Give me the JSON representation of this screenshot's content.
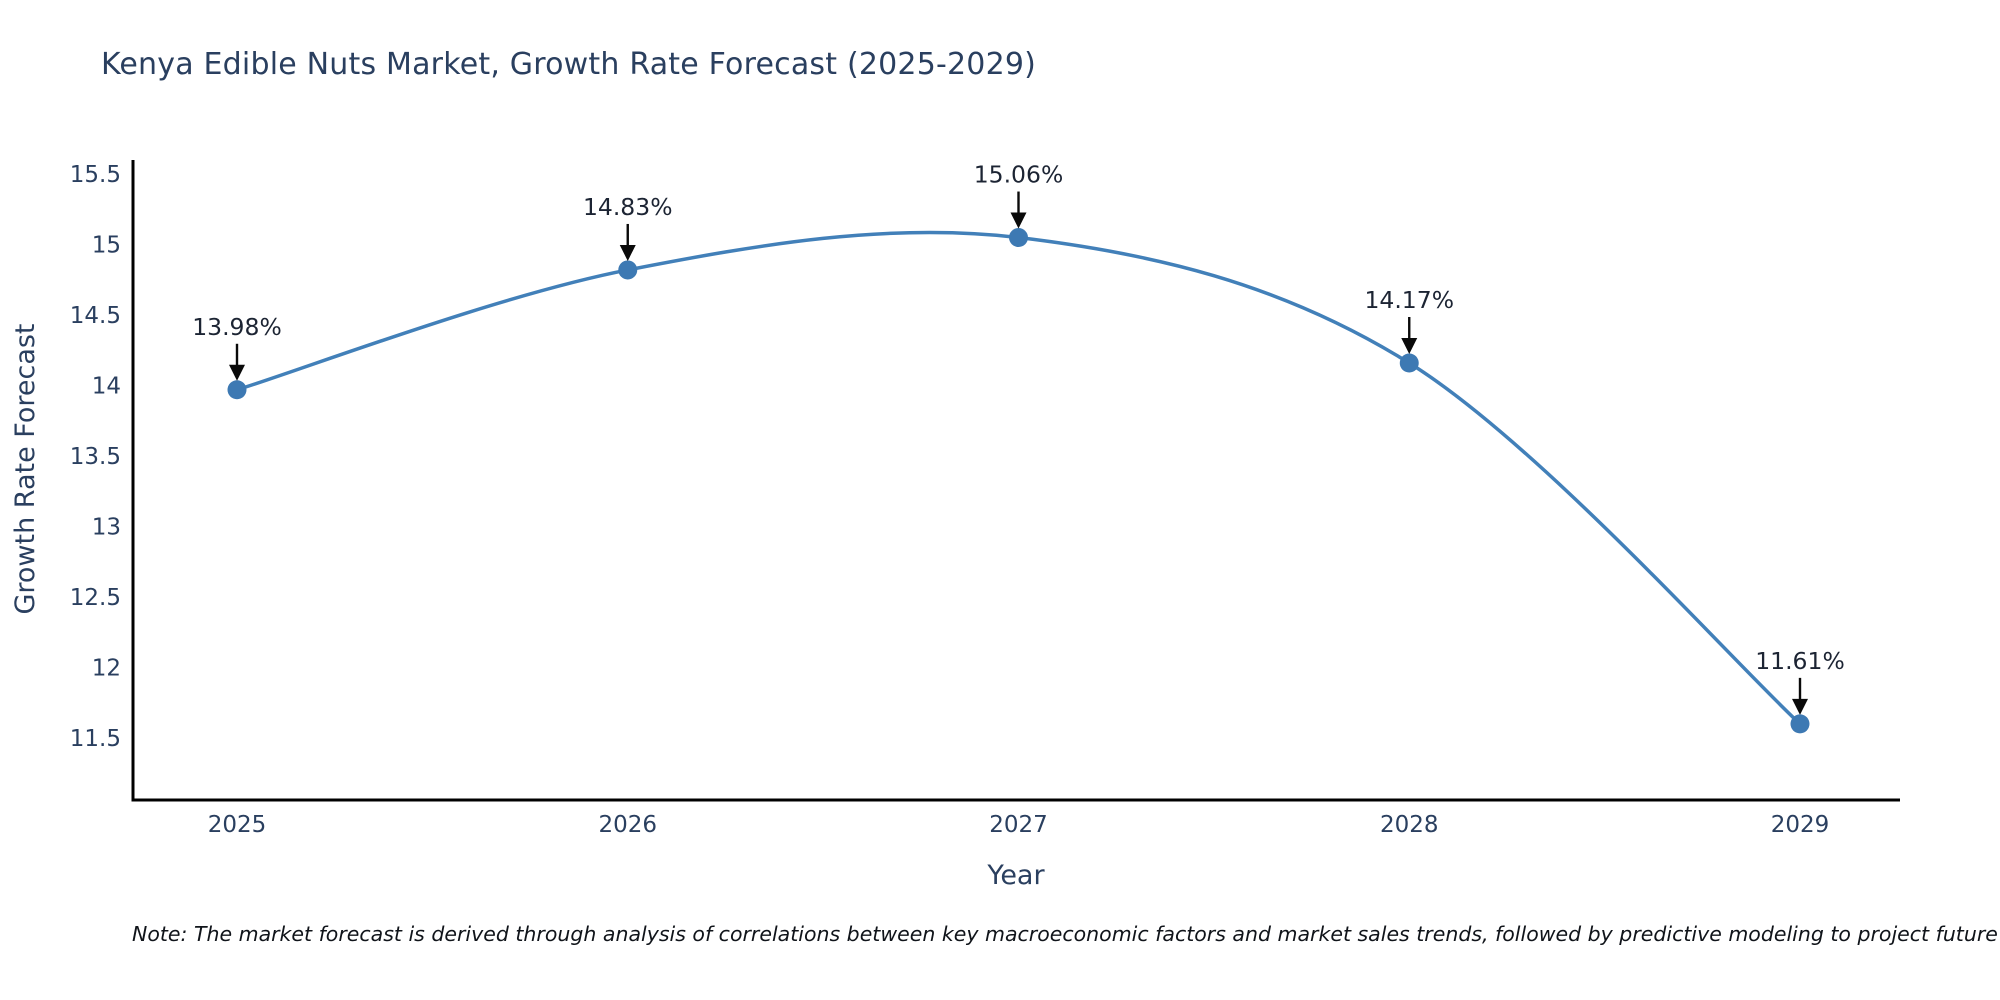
{
  "chart_data": {
    "type": "line",
    "title": "Kenya Edible Nuts Market, Growth Rate Forecast (2025-2029)",
    "xlabel": "Year",
    "ylabel": "Growth Rate Forecast",
    "categories": [
      "2025",
      "2026",
      "2027",
      "2028",
      "2029"
    ],
    "series": [
      {
        "name": "Growth Rate Forecast",
        "values": [
          13.98,
          14.83,
          15.06,
          14.17,
          11.61
        ],
        "point_labels": [
          "13.98%",
          "14.83%",
          "15.06%",
          "14.17%",
          "11.61%"
        ]
      }
    ],
    "ytick_labels": [
      "11.5",
      "12",
      "12.5",
      "13",
      "13.5",
      "14",
      "14.5",
      "15",
      "15.5"
    ],
    "ylim": [
      11.07,
      15.61
    ],
    "grid": false,
    "legend_visible": false,
    "line_shape": "spline",
    "annotations_style": "downward-black-arrows",
    "colors": {
      "line": "#4280b9",
      "marker": "#3d79b3",
      "axis_line": "#000000",
      "axis_text": "#2a3f5f",
      "annotation_text": "#1c2433",
      "arrow": "#0a0a0a",
      "background": "#ffffff"
    }
  },
  "note": "Note: The market forecast is derived through analysis of correlations between key macroeconomic factors and market sales trends, followed by predictive modeling to project future sales."
}
